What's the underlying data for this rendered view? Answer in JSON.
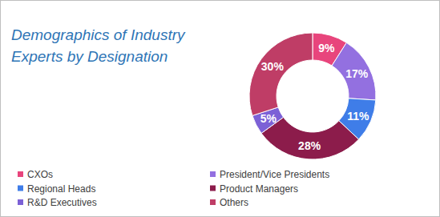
{
  "chart_data": {
    "type": "pie",
    "title": "Demographics of Industry Experts by Designation",
    "categories": [
      "CXOs",
      "President/Vice Presidents",
      "Regional Heads",
      "Product Managers",
      "R&D Executives",
      "Others"
    ],
    "values": [
      9,
      17,
      11,
      28,
      5,
      30
    ],
    "value_labels": [
      "9%",
      "17%",
      "11%",
      "28%",
      "5%",
      "30%"
    ],
    "colors": [
      "#e8457c",
      "#9370e0",
      "#3f7de8",
      "#8c1c4b",
      "#7c61d6",
      "#bf3d66"
    ],
    "data_labels": true,
    "legend": "bottom"
  }
}
